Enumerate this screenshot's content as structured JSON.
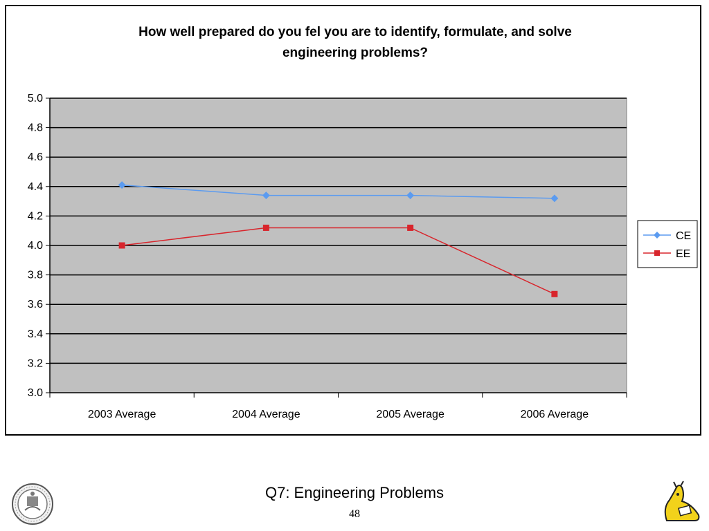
{
  "chart_data": {
    "type": "line",
    "title_lines": [
      "How well prepared do you fel you are to identify, formulate, and solve",
      "engineering problems?"
    ],
    "categories": [
      "2003 Average",
      "2004 Average",
      "2005 Average",
      "2006 Average"
    ],
    "series": [
      {
        "name": "CE",
        "values": [
          4.41,
          4.34,
          4.34,
          4.32
        ],
        "color": "#5b9bf0",
        "marker": "diamond"
      },
      {
        "name": "EE",
        "values": [
          4.0,
          4.12,
          4.12,
          3.67
        ],
        "color": "#d8252c",
        "marker": "square"
      }
    ],
    "ylim": [
      3.0,
      5.0
    ],
    "y_ticks": [
      "3.0",
      "3.2",
      "3.4",
      "3.6",
      "3.8",
      "4.0",
      "4.2",
      "4.4",
      "4.6",
      "4.8",
      "5.0"
    ],
    "grid": true,
    "plot_background": "#c0c0c0",
    "legend": "right"
  },
  "slide": {
    "caption": "Q7: Engineering Problems",
    "page_number": "48"
  }
}
